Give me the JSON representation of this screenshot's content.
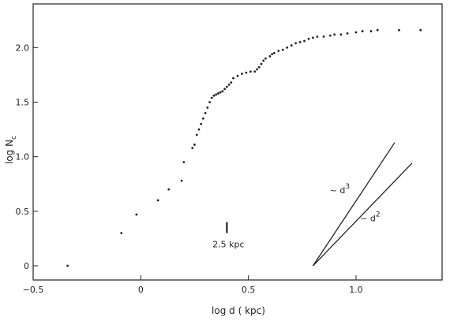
{
  "chart_data": {
    "type": "scatter",
    "xlabel": "log  d  ( kpc)",
    "ylabel": "log  N",
    "ylabel_sub": "c",
    "xlim": [
      -0.5,
      1.4
    ],
    "ylim": [
      -0.13,
      2.4
    ],
    "x_ticks": [
      -0.5,
      0,
      0.5,
      1.0
    ],
    "x_tick_labels": [
      "−0.5",
      "0",
      "0.5",
      "1.0"
    ],
    "y_ticks": [
      0,
      0.5,
      1.0,
      1.5,
      2.0
    ],
    "y_tick_labels": [
      "0",
      "0.5",
      "1.0",
      "1.5",
      "2.0"
    ],
    "grid": false,
    "points": [
      [
        -0.34,
        0.0
      ],
      [
        -0.09,
        0.3
      ],
      [
        -0.02,
        0.47
      ],
      [
        0.08,
        0.6
      ],
      [
        0.13,
        0.7
      ],
      [
        0.19,
        0.78
      ],
      [
        0.2,
        0.95
      ],
      [
        0.24,
        1.08
      ],
      [
        0.25,
        1.11
      ],
      [
        0.26,
        1.2
      ],
      [
        0.27,
        1.25
      ],
      [
        0.28,
        1.3
      ],
      [
        0.29,
        1.35
      ],
      [
        0.3,
        1.4
      ],
      [
        0.31,
        1.45
      ],
      [
        0.32,
        1.5
      ],
      [
        0.33,
        1.54
      ],
      [
        0.34,
        1.56
      ],
      [
        0.35,
        1.57
      ],
      [
        0.36,
        1.58
      ],
      [
        0.37,
        1.59
      ],
      [
        0.38,
        1.6
      ],
      [
        0.39,
        1.62
      ],
      [
        0.4,
        1.64
      ],
      [
        0.41,
        1.66
      ],
      [
        0.42,
        1.68
      ],
      [
        0.43,
        1.72
      ],
      [
        0.45,
        1.74
      ],
      [
        0.47,
        1.76
      ],
      [
        0.49,
        1.77
      ],
      [
        0.51,
        1.78
      ],
      [
        0.53,
        1.78
      ],
      [
        0.54,
        1.8
      ],
      [
        0.55,
        1.82
      ],
      [
        0.56,
        1.85
      ],
      [
        0.57,
        1.88
      ],
      [
        0.58,
        1.9
      ],
      [
        0.6,
        1.92
      ],
      [
        0.61,
        1.94
      ],
      [
        0.62,
        1.95
      ],
      [
        0.64,
        1.97
      ],
      [
        0.66,
        1.98
      ],
      [
        0.68,
        2.0
      ],
      [
        0.7,
        2.02
      ],
      [
        0.72,
        2.04
      ],
      [
        0.74,
        2.05
      ],
      [
        0.76,
        2.06
      ],
      [
        0.78,
        2.08
      ],
      [
        0.8,
        2.09
      ],
      [
        0.82,
        2.1
      ],
      [
        0.85,
        2.1
      ],
      [
        0.88,
        2.11
      ],
      [
        0.9,
        2.12
      ],
      [
        0.93,
        2.12
      ],
      [
        0.96,
        2.13
      ],
      [
        1.0,
        2.14
      ],
      [
        1.03,
        2.15
      ],
      [
        1.07,
        2.15
      ],
      [
        1.1,
        2.16
      ],
      [
        1.2,
        2.16
      ],
      [
        1.3,
        2.16
      ]
    ],
    "guide_lines": [
      {
        "label_main": "~ d",
        "label_exp": "3",
        "from": [
          0.8,
          0.0
        ],
        "to": [
          1.18,
          1.13
        ]
      },
      {
        "label_main": "~ d",
        "label_exp": "2",
        "from": [
          0.8,
          0.0
        ],
        "to": [
          1.26,
          0.94
        ]
      }
    ],
    "scale_marker": {
      "label": "2.5  kpc",
      "x": 0.4,
      "y_from": 0.3,
      "y_to": 0.4
    }
  }
}
